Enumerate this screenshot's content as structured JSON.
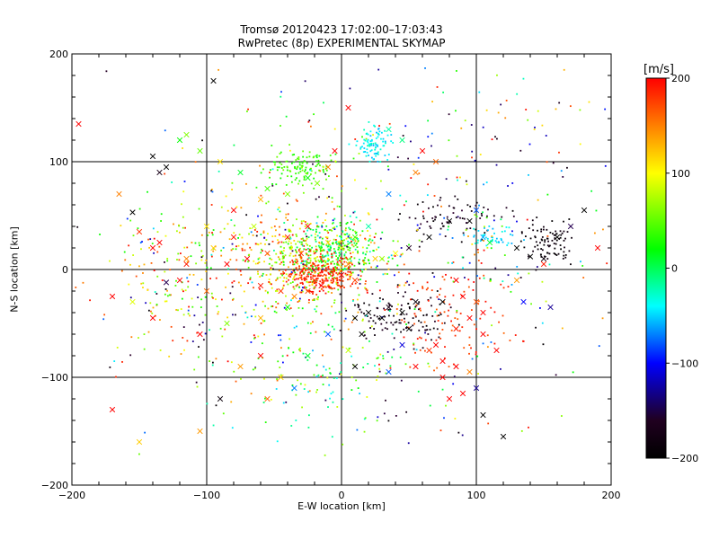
{
  "chart_data": {
    "type": "scatter",
    "title": "Tromsø 20120423 17:02:00–17:03:43",
    "subtitle": "RwPretec (8p) EXPERIMENTAL SKYMAP",
    "xlabel": "E-W location [km]",
    "ylabel": "N-S location [km]",
    "xlim": [
      -200,
      200
    ],
    "ylim": [
      -200,
      200
    ],
    "grid": true,
    "grid_lines": [
      -100,
      0,
      100
    ],
    "x_ticks": [
      -200,
      -100,
      0,
      100,
      200
    ],
    "y_ticks": [
      -200,
      -100,
      0,
      100,
      200
    ],
    "x_tick_labels": [
      "−200",
      "−100",
      "0",
      "100",
      "200"
    ],
    "y_tick_labels": [
      "−200",
      "−100",
      "0",
      "100",
      "200"
    ],
    "colorbar": {
      "unit": "[m/s]",
      "range": [
        -200,
        200
      ],
      "ticks": [
        200,
        100,
        0,
        -100,
        -200
      ],
      "tick_labels": [
        "200",
        "100",
        "0",
        "−100",
        "−200"
      ],
      "colors": [
        "#ff0000",
        "#ffff00",
        "#00ff00",
        "#00ffff",
        "#0000ff",
        "#000000"
      ]
    },
    "series": [
      {
        "marker": "x",
        "points": [
          [
            -195,
            135,
            200
          ],
          [
            -95,
            175,
            -200
          ],
          [
            -140,
            105,
            -200
          ],
          [
            -135,
            90,
            -180
          ],
          [
            -130,
            95,
            -200
          ],
          [
            -155,
            53,
            -200
          ],
          [
            -130,
            -12,
            -150
          ],
          [
            -165,
            70,
            150
          ],
          [
            -120,
            120,
            20
          ],
          [
            -115,
            125,
            60
          ],
          [
            -105,
            110,
            50
          ],
          [
            -90,
            100,
            110
          ],
          [
            -75,
            90,
            10
          ],
          [
            -55,
            75,
            40
          ],
          [
            -40,
            70,
            60
          ],
          [
            -25,
            85,
            20
          ],
          [
            -18,
            80,
            60
          ],
          [
            -10,
            95,
            150
          ],
          [
            -5,
            110,
            200
          ],
          [
            5,
            150,
            200
          ],
          [
            35,
            130,
            -20
          ],
          [
            45,
            120,
            -10
          ],
          [
            60,
            110,
            200
          ],
          [
            70,
            100,
            160
          ],
          [
            55,
            90,
            150
          ],
          [
            -80,
            30,
            190
          ],
          [
            -70,
            10,
            200
          ],
          [
            -60,
            -15,
            190
          ],
          [
            -45,
            -20,
            180
          ],
          [
            -35,
            -25,
            150
          ],
          [
            -25,
            -20,
            170
          ],
          [
            -15,
            -15,
            200
          ],
          [
            -20,
            -10,
            190
          ],
          [
            0,
            -5,
            200
          ],
          [
            10,
            -10,
            175
          ],
          [
            5,
            5,
            150
          ],
          [
            25,
            10,
            120
          ],
          [
            40,
            15,
            100
          ],
          [
            50,
            20,
            -170
          ],
          [
            65,
            30,
            -200
          ],
          [
            80,
            45,
            -200
          ],
          [
            95,
            45,
            -200
          ],
          [
            105,
            30,
            -60
          ],
          [
            130,
            20,
            -200
          ],
          [
            140,
            12,
            -200
          ],
          [
            150,
            10,
            -190
          ],
          [
            160,
            30,
            -200
          ],
          [
            75,
            -30,
            -200
          ],
          [
            90,
            -25,
            200
          ],
          [
            110,
            25,
            10
          ],
          [
            20,
            -40,
            -200
          ],
          [
            30,
            -45,
            -200
          ],
          [
            35,
            -35,
            -180
          ],
          [
            45,
            -40,
            -200
          ],
          [
            50,
            -55,
            -200
          ],
          [
            55,
            -30,
            -190
          ],
          [
            15,
            -60,
            -200
          ],
          [
            -40,
            -35,
            20
          ],
          [
            -60,
            -45,
            130
          ],
          [
            -85,
            -50,
            60
          ],
          [
            -120,
            -10,
            200
          ],
          [
            -140,
            -45,
            200
          ],
          [
            -170,
            -25,
            200
          ],
          [
            -115,
            10,
            150
          ],
          [
            -95,
            20,
            120
          ],
          [
            -35,
            -110,
            -70
          ],
          [
            -25,
            -80,
            10
          ],
          [
            -10,
            -60,
            -80
          ],
          [
            5,
            -75,
            80
          ],
          [
            10,
            -90,
            -200
          ],
          [
            35,
            -95,
            -80
          ],
          [
            45,
            -70,
            -110
          ],
          [
            55,
            -90,
            200
          ],
          [
            65,
            -75,
            180
          ],
          [
            75,
            -85,
            200
          ],
          [
            85,
            -90,
            200
          ],
          [
            95,
            -95,
            150
          ],
          [
            80,
            -120,
            200
          ],
          [
            90,
            -115,
            200
          ],
          [
            100,
            -110,
            -130
          ],
          [
            105,
            -135,
            -200
          ],
          [
            120,
            -155,
            -200
          ],
          [
            75,
            -100,
            200
          ],
          [
            70,
            -70,
            200
          ],
          [
            85,
            -55,
            190
          ],
          [
            95,
            -45,
            200
          ],
          [
            100,
            -30,
            170
          ],
          [
            105,
            -40,
            200
          ],
          [
            85,
            -10,
            200
          ],
          [
            100,
            55,
            -80
          ],
          [
            -25,
            40,
            200
          ],
          [
            -40,
            30,
            190
          ],
          [
            -55,
            15,
            170
          ],
          [
            -30,
            15,
            180
          ],
          [
            -10,
            25,
            120
          ],
          [
            0,
            20,
            90
          ],
          [
            10,
            30,
            40
          ],
          [
            20,
            40,
            -20
          ],
          [
            30,
            10,
            70
          ],
          [
            35,
            70,
            -70
          ],
          [
            -60,
            65,
            130
          ],
          [
            -80,
            55,
            200
          ],
          [
            -100,
            40,
            110
          ],
          [
            -135,
            25,
            200
          ],
          [
            -150,
            35,
            180
          ],
          [
            -155,
            -30,
            90
          ],
          [
            -105,
            -60,
            200
          ],
          [
            -75,
            -90,
            140
          ],
          [
            -60,
            -80,
            200
          ],
          [
            -45,
            -100,
            120
          ],
          [
            -55,
            -120,
            160
          ],
          [
            -90,
            -120,
            -190
          ],
          [
            -105,
            -150,
            140
          ],
          [
            -150,
            -160,
            120
          ],
          [
            -170,
            -130,
            200
          ],
          [
            -65,
            40,
            80
          ],
          [
            -115,
            5,
            190
          ],
          [
            -100,
            -20,
            160
          ],
          [
            -85,
            5,
            200
          ],
          [
            -140,
            20,
            200
          ],
          [
            130,
            -10,
            140
          ],
          [
            150,
            5,
            190
          ],
          [
            170,
            40,
            -150
          ],
          [
            180,
            55,
            -200
          ],
          [
            190,
            20,
            200
          ],
          [
            105,
            -60,
            200
          ],
          [
            115,
            -75,
            200
          ],
          [
            135,
            -30,
            -100
          ],
          [
            155,
            -35,
            -130
          ],
          [
            10,
            -45,
            -200
          ]
        ]
      },
      {
        "marker": "dot",
        "clusters": [
          {
            "cx": -20,
            "cy": 10,
            "sx": 25,
            "sy": 18,
            "n": 420,
            "vmin": 20,
            "vmax": 200,
            "seed": 11
          },
          {
            "cx": -15,
            "cy": -5,
            "sx": 12,
            "sy": 8,
            "n": 220,
            "vmin": 170,
            "vmax": 200,
            "seed": 12
          },
          {
            "cx": -5,
            "cy": 20,
            "sx": 15,
            "sy": 12,
            "n": 200,
            "vmin": -30,
            "vmax": 60,
            "seed": 13
          },
          {
            "cx": 25,
            "cy": 118,
            "sx": 6,
            "sy": 8,
            "n": 90,
            "vmin": -60,
            "vmax": -20,
            "seed": 14
          },
          {
            "cx": -30,
            "cy": 95,
            "sx": 14,
            "sy": 8,
            "n": 120,
            "vmin": 20,
            "vmax": 60,
            "seed": 15
          },
          {
            "cx": 155,
            "cy": 25,
            "sx": 10,
            "sy": 9,
            "n": 90,
            "vmin": -200,
            "vmax": -180,
            "seed": 16
          },
          {
            "cx": 80,
            "cy": 50,
            "sx": 18,
            "sy": 8,
            "n": 70,
            "vmin": -200,
            "vmax": -160,
            "seed": 17
          },
          {
            "cx": 40,
            "cy": -45,
            "sx": 18,
            "sy": 12,
            "n": 110,
            "vmin": -200,
            "vmax": -170,
            "seed": 18
          },
          {
            "cx": 80,
            "cy": -40,
            "sx": 20,
            "sy": 25,
            "n": 110,
            "vmin": 160,
            "vmax": 200,
            "seed": 19
          },
          {
            "cx": 110,
            "cy": 30,
            "sx": 8,
            "sy": 6,
            "n": 45,
            "vmin": -60,
            "vmax": -30,
            "seed": 20
          },
          {
            "cx": -90,
            "cy": 0,
            "sx": 50,
            "sy": 40,
            "n": 260,
            "vmin": 20,
            "vmax": 200,
            "seed": 21
          },
          {
            "cx": 0,
            "cy": 0,
            "sx": 90,
            "sy": 80,
            "n": 520,
            "vmin": -200,
            "vmax": 200,
            "seed": 22
          },
          {
            "cx": -20,
            "cy": -100,
            "sx": 35,
            "sy": 25,
            "n": 90,
            "vmin": -60,
            "vmax": 100,
            "seed": 23
          },
          {
            "cx": 120,
            "cy": 110,
            "sx": 45,
            "sy": 50,
            "n": 70,
            "vmin": -200,
            "vmax": 200,
            "seed": 24
          }
        ]
      }
    ]
  }
}
